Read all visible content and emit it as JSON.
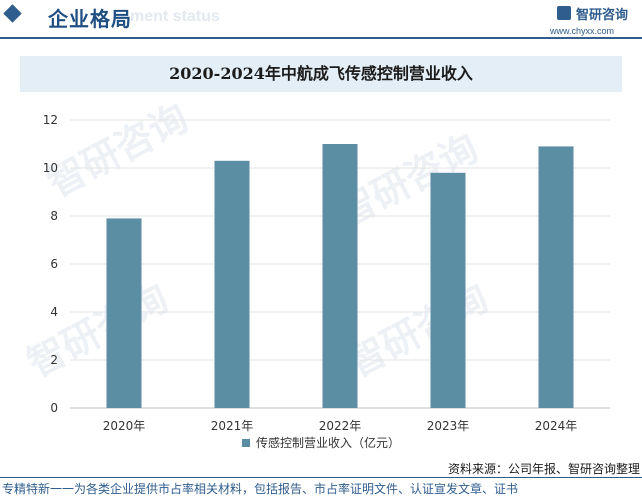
{
  "header": {
    "section_title": "企业格局",
    "section_subtitle": "ment status",
    "logo_name": "智研咨询",
    "logo_url": "www.chyxx.com"
  },
  "watermark": "智研咨询",
  "colors": {
    "bar": "#5c8ea3",
    "accent": "#2f5d8c",
    "title_band": "#e3eef6"
  },
  "chart_data": {
    "type": "bar",
    "title": "2020-2024年中航成飞传感控制营业收入",
    "categories": [
      "2020年",
      "2021年",
      "2022年",
      "2023年",
      "2024年"
    ],
    "series": [
      {
        "name": "传感控制营业收入（亿元）",
        "values": [
          7.9,
          10.3,
          11.0,
          9.8,
          10.9
        ]
      }
    ],
    "ylim": [
      0,
      12
    ],
    "yticks": [
      0,
      2,
      4,
      6,
      8,
      10,
      12
    ],
    "grid": true,
    "legend": "bottom"
  },
  "footer": {
    "source": "资料来源：公司年报、智研咨询整理",
    "tagline": "专精特新一一为各类企业提供市占率相关材料，包括报告、市占率证明文件、认证宣发文章、证书"
  }
}
